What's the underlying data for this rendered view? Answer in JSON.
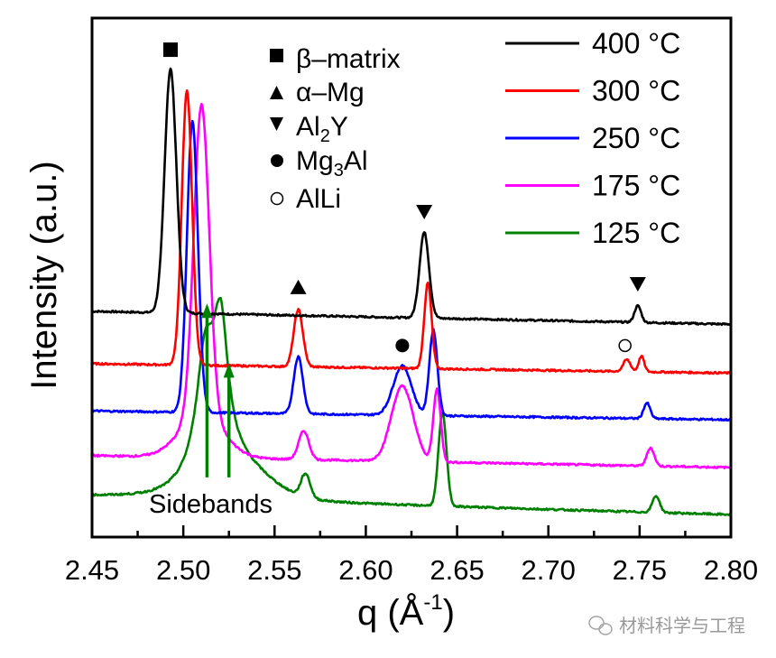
{
  "chart_data": {
    "type": "line",
    "title": "",
    "xlabel": "q (Å",
    "xlabel_sup": "-1",
    "xlabel_close": ")",
    "ylabel": "Intensity (a.u.)",
    "xlim": [
      2.45,
      2.8
    ],
    "ylim": [
      0,
      100
    ],
    "xticks": [
      "2.45",
      "2.50",
      "2.55",
      "2.60",
      "2.65",
      "2.70",
      "2.75",
      "2.80"
    ],
    "xtick_values": [
      2.45,
      2.5,
      2.55,
      2.6,
      2.65,
      2.7,
      2.75,
      2.8
    ],
    "grid": false,
    "yticks_shown": false,
    "legend_placement": "top-right",
    "series": [
      {
        "name": "400 °C",
        "color": "#000000",
        "baseline": [
          43.5,
          41.0
        ],
        "peaks": [
          {
            "q": 2.493,
            "h": 47,
            "w": 0.0032,
            "shape": "g"
          },
          {
            "q": 2.632,
            "h": 16.5,
            "w": 0.0026,
            "shape": "g"
          },
          {
            "q": 2.749,
            "h": 3.2,
            "w": 0.0018,
            "shape": "g"
          }
        ]
      },
      {
        "name": "300 °C",
        "color": "#ff0000",
        "baseline": [
          33.4,
          31.6
        ],
        "peaks": [
          {
            "q": 2.502,
            "h": 53,
            "w": 0.0028,
            "shape": "g"
          },
          {
            "q": 2.563,
            "h": 11,
            "w": 0.0025,
            "shape": "g"
          },
          {
            "q": 2.634,
            "h": 16.5,
            "w": 0.002,
            "shape": "g"
          },
          {
            "q": 2.743,
            "h": 2.3,
            "w": 0.002,
            "shape": "g"
          },
          {
            "q": 2.751,
            "h": 3.0,
            "w": 0.0015,
            "shape": "g"
          }
        ]
      },
      {
        "name": "250 °C",
        "color": "#0000ff",
        "baseline": [
          24.3,
          22.6
        ],
        "peaks": [
          {
            "q": 2.505,
            "h": 56,
            "w": 0.003,
            "shape": "g"
          },
          {
            "q": 2.563,
            "h": 11,
            "w": 0.0025,
            "shape": "g"
          },
          {
            "q": 2.62,
            "h": 9.5,
            "w": 0.005,
            "shape": "g"
          },
          {
            "q": 2.637,
            "h": 16.5,
            "w": 0.0022,
            "shape": "g"
          },
          {
            "q": 2.754,
            "h": 3.0,
            "w": 0.0018,
            "shape": "g"
          }
        ]
      },
      {
        "name": "175 °C",
        "color": "#ff00ff",
        "baseline": [
          15.7,
          13.4
        ],
        "peaks": [
          {
            "q": 2.51,
            "h": 60,
            "w": 0.0042,
            "shape": "g"
          },
          {
            "q": 2.51,
            "h": 8,
            "w": 0.012,
            "shape": "g"
          },
          {
            "q": 2.566,
            "h": 5.5,
            "w": 0.0028,
            "shape": "g"
          },
          {
            "q": 2.62,
            "h": 14.5,
            "w": 0.006,
            "shape": "g"
          },
          {
            "q": 2.639,
            "h": 14,
            "w": 0.002,
            "shape": "g"
          },
          {
            "q": 2.756,
            "h": 3.5,
            "w": 0.002,
            "shape": "g"
          }
        ]
      },
      {
        "name": "125 °C",
        "color": "#008000",
        "baseline": [
          7.8,
          4.3
        ],
        "peaks": [
          {
            "q": 2.512,
            "h": 22,
            "w": 0.006,
            "shape": "l"
          },
          {
            "q": 2.5205,
            "h": 26,
            "w": 0.005,
            "shape": "l"
          },
          {
            "q": 2.528,
            "h": 6,
            "w": 0.018,
            "shape": "g"
          },
          {
            "q": 2.567,
            "h": 4.5,
            "w": 0.0025,
            "shape": "g"
          },
          {
            "q": 2.642,
            "h": 18,
            "w": 0.0022,
            "shape": "g"
          },
          {
            "q": 2.759,
            "h": 3.2,
            "w": 0.002,
            "shape": "g"
          }
        ]
      }
    ],
    "phase_legend": [
      {
        "symbol": "filled-square",
        "label": "β–matrix"
      },
      {
        "symbol": "filled-triangle-up",
        "label": "α–Mg"
      },
      {
        "symbol": "filled-triangle-down",
        "label": "Al",
        "sub": "2",
        "label_after": "Y"
      },
      {
        "symbol": "filled-circle",
        "label": "Mg",
        "sub": "3",
        "label_after": "Al"
      },
      {
        "symbol": "open-circle",
        "label": "AlLi"
      }
    ],
    "peak_markers": [
      {
        "symbol": "filled-square",
        "q": 2.493,
        "y": 93.9
      },
      {
        "symbol": "filled-triangle-up",
        "q": 2.563,
        "y": 48.2
      },
      {
        "symbol": "filled-triangle-down",
        "q": 2.632,
        "y": 62.6
      },
      {
        "symbol": "filled-triangle-down",
        "q": 2.749,
        "y": 48.7
      },
      {
        "symbol": "filled-circle",
        "q": 2.62,
        "y": 36.9
      },
      {
        "symbol": "open-circle",
        "q": 2.742,
        "y": 36.9
      }
    ],
    "annotations": [
      {
        "text": "Sidebands",
        "arrows": [
          {
            "q": 2.513,
            "y_from": 11.5,
            "y_to": 45
          },
          {
            "q": 2.525,
            "y_from": 11.5,
            "y_to": 33.5
          }
        ]
      }
    ]
  },
  "watermark": {
    "text": "材料科学与工程",
    "icon": "wechat-icon"
  }
}
